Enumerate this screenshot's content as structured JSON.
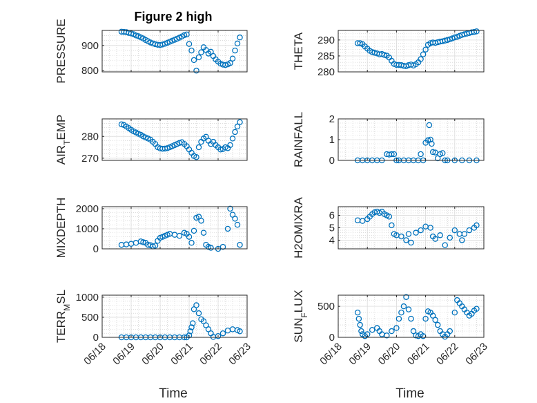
{
  "chart_data": {
    "type": "scatter",
    "title": "Figure 2 high",
    "xlabel": "Time",
    "xticks": [
      "06/18",
      "06/19",
      "06/20",
      "06/21",
      "06/22",
      "06/23"
    ],
    "xlim": [
      "06/18",
      "06/23"
    ],
    "grid": "on",
    "marker": "circle",
    "color": "#0072BD",
    "panels": [
      {
        "id": "pressure",
        "ylabel": "PRESSURE",
        "ylim": [
          795,
          960
        ],
        "yticks": [
          800,
          900
        ],
        "x": [
          "06/18 16:00",
          "06/18 18:00",
          "06/18 20:00",
          "06/18 22:00",
          "06/19 00:00",
          "06/19 02:00",
          "06/19 04:00",
          "06/19 06:00",
          "06/19 08:00",
          "06/19 10:00",
          "06/19 12:00",
          "06/19 14:00",
          "06/19 16:00",
          "06/19 18:00",
          "06/19 20:00",
          "06/19 22:00",
          "06/20 00:00",
          "06/20 02:00",
          "06/20 04:00",
          "06/20 06:00",
          "06/20 08:00",
          "06/20 10:00",
          "06/20 12:00",
          "06/20 14:00",
          "06/20 16:00",
          "06/20 18:00",
          "06/20 20:00",
          "06/20 22:00",
          "06/21 00:00",
          "06/21 02:00",
          "06/21 04:00",
          "06/21 06:00",
          "06/21 08:00",
          "06/21 10:00",
          "06/21 12:00",
          "06/21 14:00",
          "06/21 16:00",
          "06/21 18:00",
          "06/21 20:00",
          "06/21 22:00",
          "06/22 00:00",
          "06/22 02:00",
          "06/22 04:00",
          "06/22 06:00",
          "06/22 08:00",
          "06/22 10:00",
          "06/22 12:00",
          "06/22 14:00",
          "06/22 16:00",
          "06/22 18:00"
        ],
        "y": [
          955,
          954,
          953,
          950,
          948,
          945,
          940,
          937,
          932,
          928,
          922,
          917,
          912,
          908,
          905,
          903,
          902,
          904,
          907,
          911,
          915,
          919,
          923,
          927,
          931,
          936,
          941,
          944,
          906,
          880,
          842,
          800,
          853,
          873,
          893,
          882,
          868,
          875,
          858,
          845,
          836,
          828,
          824,
          822,
          825,
          830,
          848,
          880,
          908,
          932
        ]
      },
      {
        "id": "theta",
        "ylabel": "THETA",
        "ylim": [
          280,
          293
        ],
        "yticks": [
          280,
          285,
          290
        ],
        "x": [
          "06/18 16:00",
          "06/18 18:00",
          "06/18 20:00",
          "06/18 22:00",
          "06/19 00:00",
          "06/19 02:00",
          "06/19 04:00",
          "06/19 06:00",
          "06/19 08:00",
          "06/19 10:00",
          "06/19 12:00",
          "06/19 14:00",
          "06/19 16:00",
          "06/19 18:00",
          "06/19 20:00",
          "06/19 22:00",
          "06/20 00:00",
          "06/20 02:00",
          "06/20 04:00",
          "06/20 06:00",
          "06/20 08:00",
          "06/20 10:00",
          "06/20 12:00",
          "06/20 14:00",
          "06/20 16:00",
          "06/20 18:00",
          "06/20 20:00",
          "06/20 22:00",
          "06/21 00:00",
          "06/21 02:00",
          "06/21 04:00",
          "06/21 06:00",
          "06/21 08:00",
          "06/21 10:00",
          "06/21 12:00",
          "06/21 14:00",
          "06/21 16:00",
          "06/21 18:00",
          "06/21 20:00",
          "06/21 22:00",
          "06/22 00:00",
          "06/22 02:00",
          "06/22 04:00",
          "06/22 06:00",
          "06/22 08:00",
          "06/22 10:00",
          "06/22 12:00",
          "06/22 14:00",
          "06/22 16:00",
          "06/22 18:00"
        ],
        "y": [
          289,
          289,
          288.7,
          288,
          287.3,
          286.6,
          286.2,
          286,
          285.8,
          285.5,
          285.6,
          285.3,
          285.1,
          284.5,
          283.5,
          282.5,
          282.2,
          282.2,
          282.1,
          281.9,
          281.8,
          282.1,
          282.3,
          282.0,
          282.4,
          283,
          284,
          285.5,
          287,
          288.5,
          289,
          289.2,
          289.1,
          289.3,
          289.5,
          289.6,
          289.8,
          290,
          290.2,
          290.5,
          290.8,
          291,
          291.3,
          291.6,
          291.8,
          292,
          292.2,
          292.4,
          292.5,
          292.7
        ]
      },
      {
        "id": "air_temp",
        "ylabel_main": "AIR",
        "ylabel_sub": "T",
        "ylabel_tail": "EMP",
        "ylim": [
          269,
          288
        ],
        "yticks": [
          270,
          280
        ],
        "x": [
          "06/18 16:00",
          "06/18 18:00",
          "06/18 20:00",
          "06/18 22:00",
          "06/19 00:00",
          "06/19 02:00",
          "06/19 04:00",
          "06/19 06:00",
          "06/19 08:00",
          "06/19 10:00",
          "06/19 12:00",
          "06/19 14:00",
          "06/19 16:00",
          "06/19 18:00",
          "06/19 20:00",
          "06/19 22:00",
          "06/20 00:00",
          "06/20 02:00",
          "06/20 04:00",
          "06/20 06:00",
          "06/20 08:00",
          "06/20 10:00",
          "06/20 12:00",
          "06/20 14:00",
          "06/20 16:00",
          "06/20 18:00",
          "06/20 20:00",
          "06/20 22:00",
          "06/21 00:00",
          "06/21 02:00",
          "06/21 04:00",
          "06/21 06:00",
          "06/21 08:00",
          "06/21 10:00",
          "06/21 12:00",
          "06/21 14:00",
          "06/21 16:00",
          "06/21 18:00",
          "06/21 20:00",
          "06/21 22:00",
          "06/22 00:00",
          "06/22 02:00",
          "06/22 04:00",
          "06/22 06:00",
          "06/22 08:00",
          "06/22 10:00",
          "06/22 12:00",
          "06/22 14:00",
          "06/22 16:00",
          "06/22 18:00"
        ],
        "y": [
          285.5,
          285.2,
          284.5,
          283.8,
          283,
          282.3,
          281.8,
          281.2,
          280.7,
          280,
          279.5,
          279,
          278.5,
          277.5,
          276.5,
          275,
          274.5,
          274.3,
          274.4,
          274.6,
          275,
          275.5,
          276,
          276.5,
          277,
          277.3,
          276.5,
          275.5,
          274,
          272.5,
          271,
          270.5,
          275,
          277.5,
          279,
          279.8,
          278,
          276.5,
          277.5,
          276,
          275,
          274,
          274.2,
          275,
          274.6,
          276,
          279,
          282,
          284.5,
          286.5
        ]
      },
      {
        "id": "rainfall",
        "ylabel": "RAINFALL",
        "ylim": [
          0,
          2
        ],
        "yticks": [
          0,
          1,
          2
        ],
        "x": [
          "06/18 16:00",
          "06/18 20:00",
          "06/19 00:00",
          "06/19 04:00",
          "06/19 08:00",
          "06/19 12:00",
          "06/19 16:00",
          "06/19 18:00",
          "06/19 20:00",
          "06/19 22:00",
          "06/20 00:00",
          "06/20 02:00",
          "06/20 06:00",
          "06/20 10:00",
          "06/20 14:00",
          "06/20 18:00",
          "06/20 20:00",
          "06/20 22:00",
          "06/21 00:00",
          "06/21 02:00",
          "06/21 03:00",
          "06/21 04:00",
          "06/21 05:00",
          "06/21 06:00",
          "06/21 08:00",
          "06/21 10:00",
          "06/21 12:00",
          "06/21 14:00",
          "06/21 16:00",
          "06/21 18:00",
          "06/22 00:00",
          "06/22 06:00",
          "06/22 12:00",
          "06/22 18:00"
        ],
        "y": [
          0,
          0,
          0,
          0,
          0,
          0,
          0.3,
          0.28,
          0.3,
          0.3,
          0,
          0,
          0,
          0,
          0,
          0,
          0.3,
          0,
          0.85,
          0.97,
          1.7,
          1.0,
          0.8,
          0.4,
          0.38,
          0.1,
          0.3,
          0.35,
          0,
          0,
          0,
          0,
          0,
          0
        ]
      },
      {
        "id": "mixdepth",
        "ylabel": "MIXDEPTH",
        "ylim": [
          0,
          2100
        ],
        "yticks": [
          0,
          1000,
          2000
        ],
        "x": [
          "06/18 16:00",
          "06/18 20:00",
          "06/19 00:00",
          "06/19 04:00",
          "06/19 08:00",
          "06/19 10:00",
          "06/19 12:00",
          "06/19 14:00",
          "06/19 16:00",
          "06/19 18:00",
          "06/19 20:00",
          "06/19 22:00",
          "06/20 00:00",
          "06/20 02:00",
          "06/20 04:00",
          "06/20 06:00",
          "06/20 08:00",
          "06/20 12:00",
          "06/20 16:00",
          "06/20 20:00",
          "06/20 22:00",
          "06/21 00:00",
          "06/21 02:00",
          "06/21 04:00",
          "06/21 06:00",
          "06/21 08:00",
          "06/21 10:00",
          "06/21 12:00",
          "06/21 14:00",
          "06/21 16:00",
          "06/21 18:00",
          "06/22 00:00",
          "06/22 04:00",
          "06/22 08:00",
          "06/22 10:00",
          "06/22 12:00",
          "06/22 14:00",
          "06/22 16:00",
          "06/22 18:00"
        ],
        "y": [
          200,
          220,
          250,
          300,
          370,
          330,
          300,
          200,
          180,
          120,
          160,
          400,
          550,
          600,
          650,
          700,
          750,
          700,
          650,
          800,
          750,
          600,
          300,
          900,
          1550,
          1600,
          1400,
          800,
          200,
          100,
          50,
          0,
          100,
          1000,
          2000,
          1700,
          1500,
          1200,
          200
        ]
      },
      {
        "id": "h2omixra",
        "ylabel": "H2OMIXRA",
        "ylim": [
          3.3,
          6.7
        ],
        "yticks": [
          4,
          5,
          6
        ],
        "x": [
          "06/18 16:00",
          "06/18 20:00",
          "06/19 00:00",
          "06/19 02:00",
          "06/19 04:00",
          "06/19 06:00",
          "06/19 08:00",
          "06/19 10:00",
          "06/19 12:00",
          "06/19 14:00",
          "06/19 16:00",
          "06/19 18:00",
          "06/19 20:00",
          "06/19 22:00",
          "06/20 00:00",
          "06/20 04:00",
          "06/20 08:00",
          "06/20 10:00",
          "06/20 12:00",
          "06/20 16:00",
          "06/20 20:00",
          "06/21 00:00",
          "06/21 04:00",
          "06/21 06:00",
          "06/21 08:00",
          "06/21 12:00",
          "06/21 16:00",
          "06/21 20:00",
          "06/22 00:00",
          "06/22 04:00",
          "06/22 06:00",
          "06/22 08:00",
          "06/22 12:00",
          "06/22 16:00",
          "06/22 18:00"
        ],
        "y": [
          5.6,
          5.55,
          5.7,
          5.9,
          6.1,
          6.25,
          6.3,
          6.2,
          6.3,
          6.1,
          6.0,
          5.9,
          5.2,
          4.5,
          4.4,
          4.3,
          4.0,
          4.5,
          3.8,
          4.6,
          4.8,
          5.1,
          5.0,
          4.3,
          4.1,
          4.4,
          3.6,
          4.2,
          4.8,
          4.5,
          4.0,
          4.5,
          4.8,
          5.0,
          5.2
        ]
      },
      {
        "id": "terr_msl",
        "ylabel_main": "TERR",
        "ylabel_sub": "M",
        "ylabel_tail": "SL",
        "ylim": [
          0,
          1050
        ],
        "yticks": [
          0,
          500,
          1000
        ],
        "x": [
          "06/18 16:00",
          "06/18 20:00",
          "06/19 00:00",
          "06/19 04:00",
          "06/19 08:00",
          "06/19 12:00",
          "06/19 16:00",
          "06/19 20:00",
          "06/20 00:00",
          "06/20 04:00",
          "06/20 08:00",
          "06/20 12:00",
          "06/20 16:00",
          "06/20 20:00",
          "06/20 22:00",
          "06/21 00:00",
          "06/21 01:00",
          "06/21 02:00",
          "06/21 03:00",
          "06/21 04:00",
          "06/21 06:00",
          "06/21 08:00",
          "06/21 10:00",
          "06/21 12:00",
          "06/21 14:00",
          "06/21 16:00",
          "06/21 18:00",
          "06/21 20:00",
          "06/22 00:00",
          "06/22 04:00",
          "06/22 08:00",
          "06/22 12:00",
          "06/22 16:00",
          "06/22 18:00"
        ],
        "y": [
          0,
          0,
          0,
          0,
          0,
          0,
          0,
          0,
          0,
          0,
          0,
          0,
          0,
          0,
          0,
          50,
          150,
          250,
          350,
          700,
          800,
          600,
          450,
          400,
          300,
          200,
          100,
          10,
          30,
          100,
          170,
          200,
          180,
          150
        ]
      },
      {
        "id": "sun_flux",
        "ylabel_main": "SUN",
        "ylabel_sub": "F",
        "ylabel_tail": "LUX",
        "ylim": [
          0,
          680
        ],
        "yticks": [
          0,
          500
        ],
        "x": [
          "06/18 16:00",
          "06/18 17:00",
          "06/18 18:00",
          "06/18 19:00",
          "06/18 20:00",
          "06/18 22:00",
          "06/19 00:00",
          "06/19 04:00",
          "06/19 08:00",
          "06/19 10:00",
          "06/19 12:00",
          "06/19 16:00",
          "06/19 20:00",
          "06/20 00:00",
          "06/20 02:00",
          "06/20 04:00",
          "06/20 06:00",
          "06/20 08:00",
          "06/20 10:00",
          "06/20 12:00",
          "06/20 14:00",
          "06/20 16:00",
          "06/20 18:00",
          "06/20 20:00",
          "06/20 22:00",
          "06/21 00:00",
          "06/21 02:00",
          "06/21 04:00",
          "06/21 06:00",
          "06/21 08:00",
          "06/21 10:00",
          "06/21 12:00",
          "06/21 14:00",
          "06/21 16:00",
          "06/21 18:00",
          "06/21 20:00",
          "06/22 00:00",
          "06/22 02:00",
          "06/22 04:00",
          "06/22 06:00",
          "06/22 08:00",
          "06/22 10:00",
          "06/22 12:00",
          "06/22 14:00",
          "06/22 16:00",
          "06/22 18:00"
        ],
        "y": [
          400,
          300,
          200,
          100,
          50,
          20,
          50,
          120,
          150,
          100,
          50,
          30,
          100,
          150,
          300,
          400,
          500,
          650,
          450,
          300,
          100,
          30,
          20,
          50,
          20,
          300,
          420,
          400,
          350,
          280,
          200,
          100,
          50,
          10,
          50,
          100,
          400,
          600,
          550,
          500,
          450,
          400,
          350,
          380,
          430,
          460
        ]
      }
    ]
  }
}
